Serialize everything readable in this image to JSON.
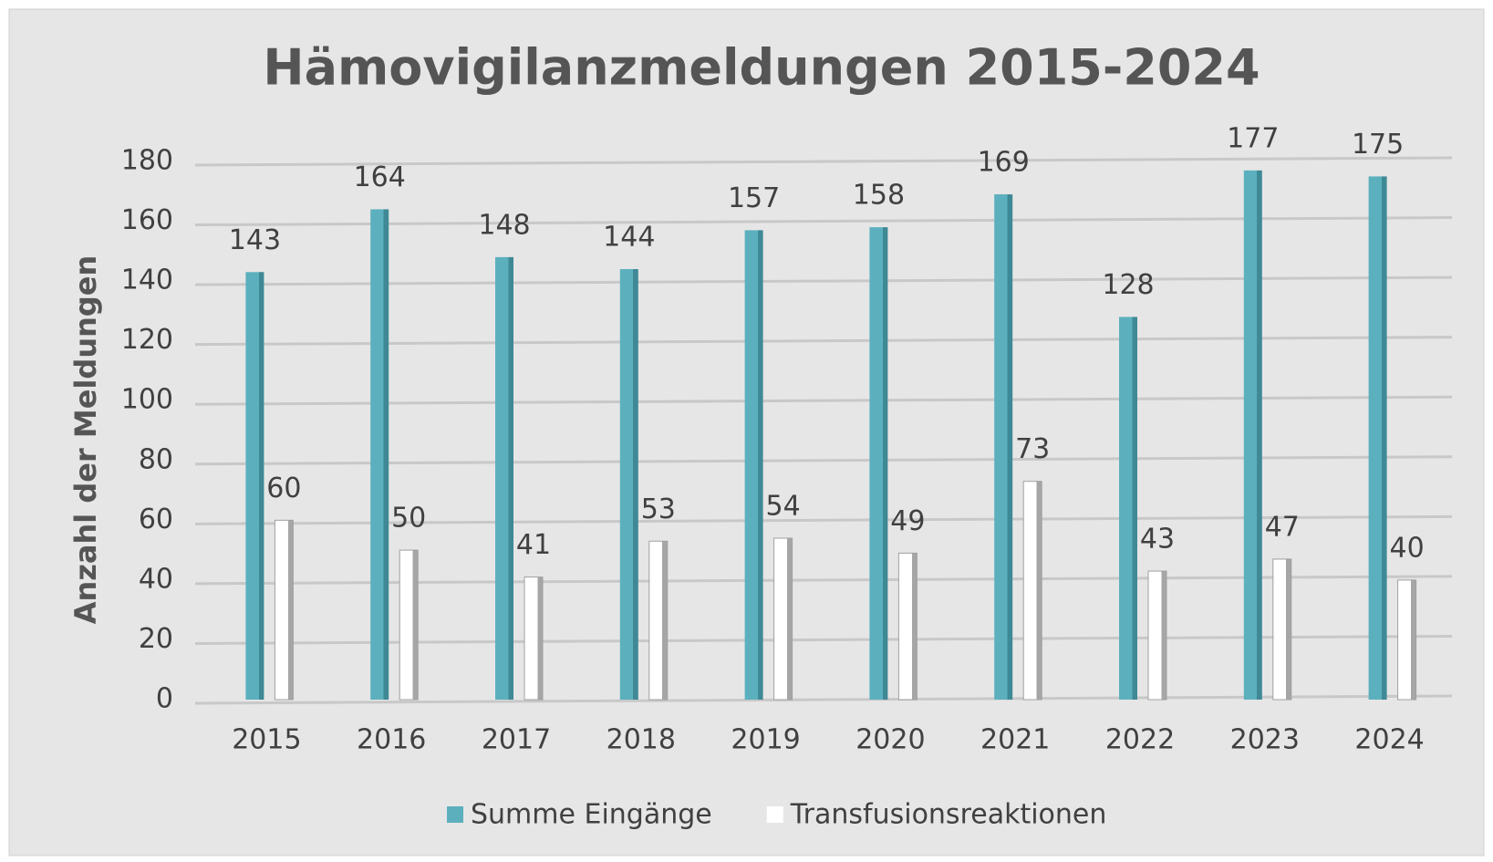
{
  "chart_data": {
    "type": "bar",
    "title": "Hämovigilanzmeldungen 2015-2024",
    "y_label": "Anzahl der Meldungen",
    "categories": [
      "2015",
      "2016",
      "2017",
      "2018",
      "2019",
      "2020",
      "2021",
      "2022",
      "2023",
      "2024"
    ],
    "series": [
      {
        "name": "Summe Eingänge",
        "color": "#5cb0be",
        "values": [
          143,
          164,
          148,
          144,
          157,
          158,
          169,
          128,
          177,
          175
        ]
      },
      {
        "name": "Transfusionsreaktionen",
        "color": "#ffffff",
        "values": [
          60,
          50,
          41,
          53,
          54,
          49,
          73,
          43,
          47,
          40
        ]
      }
    ],
    "ylim": [
      0,
      180
    ],
    "yticks": [
      0,
      20,
      40,
      60,
      80,
      100,
      120,
      140,
      160,
      180
    ],
    "grid": true,
    "legend": "bottom"
  }
}
